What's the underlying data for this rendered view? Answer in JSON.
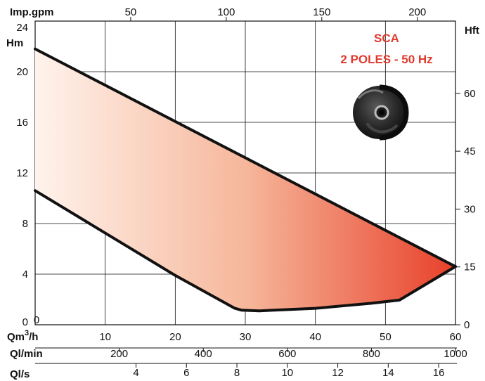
{
  "chart_data": {
    "type": "area",
    "title": "SCA",
    "subtitle": "2 POLES - 50 Hz",
    "left_axis": {
      "label": "Hm",
      "ticks": [
        0,
        4,
        8,
        12,
        16,
        20,
        24
      ],
      "range": [
        0,
        24
      ]
    },
    "right_axis": {
      "label": "Hft",
      "ticks": [
        0,
        15,
        30,
        45,
        60
      ],
      "range_ft": [
        0,
        78.74
      ]
    },
    "top_axis": {
      "label": "Imp.gpm",
      "ticks": [
        50,
        100,
        150,
        200
      ]
    },
    "bottom_axes": [
      {
        "label": "Qm",
        "label_sup": "3",
        "label_suffix": "/h",
        "ticks": [
          10,
          20,
          30,
          40,
          50,
          60
        ],
        "range": [
          0,
          60
        ]
      },
      {
        "label": "Ql/min",
        "ticks": [
          200,
          400,
          600,
          800,
          1000
        ]
      },
      {
        "label": "Ql/s",
        "ticks": [
          4,
          6,
          8,
          10,
          12,
          14,
          16
        ]
      }
    ],
    "grid": true,
    "upper_curve": {
      "x_m3h": [
        0,
        60
      ],
      "y_m": [
        21.8,
        4.6
      ]
    },
    "lower_curve": {
      "x_m3h": [
        0,
        20,
        28.5,
        29.5,
        32,
        40,
        48,
        52,
        60
      ],
      "y_m": [
        10.6,
        3.9,
        1.3,
        1.15,
        1.1,
        1.3,
        1.7,
        1.95,
        4.6
      ]
    },
    "fill_colors": [
      "#fff3ec",
      "#f6b79b",
      "#e8402a"
    ],
    "title_color": "#e03a2f"
  },
  "image": {
    "name": "impeller-photo-icon"
  }
}
